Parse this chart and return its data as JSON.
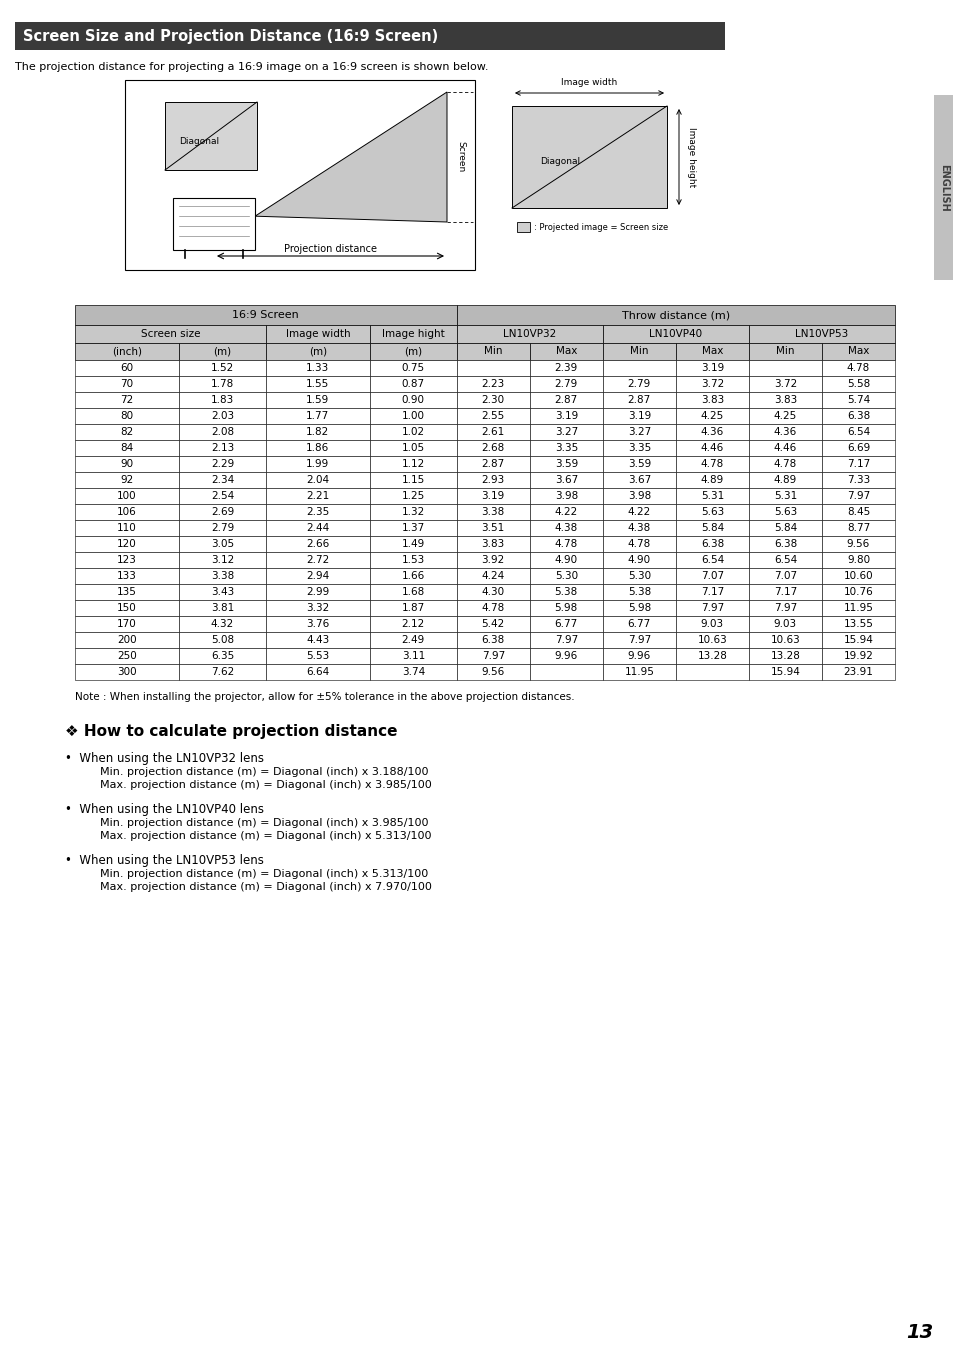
{
  "title": "Screen Size and Projection Distance (16:9 Screen)",
  "title_bg": "#3a3a3a",
  "title_color": "#ffffff",
  "intro_text": "The projection distance for projecting a 16:9 image on a 16:9 screen is shown below.",
  "table_header3_cols": [
    "(inch)",
    "(m)",
    "(m)",
    "(m)",
    "Min",
    "Max",
    "Min",
    "Max",
    "Min",
    "Max"
  ],
  "table_data": [
    [
      "60",
      "1.52",
      "1.33",
      "0.75",
      "",
      "2.39",
      "",
      "3.19",
      "",
      "4.78"
    ],
    [
      "70",
      "1.78",
      "1.55",
      "0.87",
      "2.23",
      "2.79",
      "2.79",
      "3.72",
      "3.72",
      "5.58"
    ],
    [
      "72",
      "1.83",
      "1.59",
      "0.90",
      "2.30",
      "2.87",
      "2.87",
      "3.83",
      "3.83",
      "5.74"
    ],
    [
      "80",
      "2.03",
      "1.77",
      "1.00",
      "2.55",
      "3.19",
      "3.19",
      "4.25",
      "4.25",
      "6.38"
    ],
    [
      "82",
      "2.08",
      "1.82",
      "1.02",
      "2.61",
      "3.27",
      "3.27",
      "4.36",
      "4.36",
      "6.54"
    ],
    [
      "84",
      "2.13",
      "1.86",
      "1.05",
      "2.68",
      "3.35",
      "3.35",
      "4.46",
      "4.46",
      "6.69"
    ],
    [
      "90",
      "2.29",
      "1.99",
      "1.12",
      "2.87",
      "3.59",
      "3.59",
      "4.78",
      "4.78",
      "7.17"
    ],
    [
      "92",
      "2.34",
      "2.04",
      "1.15",
      "2.93",
      "3.67",
      "3.67",
      "4.89",
      "4.89",
      "7.33"
    ],
    [
      "100",
      "2.54",
      "2.21",
      "1.25",
      "3.19",
      "3.98",
      "3.98",
      "5.31",
      "5.31",
      "7.97"
    ],
    [
      "106",
      "2.69",
      "2.35",
      "1.32",
      "3.38",
      "4.22",
      "4.22",
      "5.63",
      "5.63",
      "8.45"
    ],
    [
      "110",
      "2.79",
      "2.44",
      "1.37",
      "3.51",
      "4.38",
      "4.38",
      "5.84",
      "5.84",
      "8.77"
    ],
    [
      "120",
      "3.05",
      "2.66",
      "1.49",
      "3.83",
      "4.78",
      "4.78",
      "6.38",
      "6.38",
      "9.56"
    ],
    [
      "123",
      "3.12",
      "2.72",
      "1.53",
      "3.92",
      "4.90",
      "4.90",
      "6.54",
      "6.54",
      "9.80"
    ],
    [
      "133",
      "3.38",
      "2.94",
      "1.66",
      "4.24",
      "5.30",
      "5.30",
      "7.07",
      "7.07",
      "10.60"
    ],
    [
      "135",
      "3.43",
      "2.99",
      "1.68",
      "4.30",
      "5.38",
      "5.38",
      "7.17",
      "7.17",
      "10.76"
    ],
    [
      "150",
      "3.81",
      "3.32",
      "1.87",
      "4.78",
      "5.98",
      "5.98",
      "7.97",
      "7.97",
      "11.95"
    ],
    [
      "170",
      "4.32",
      "3.76",
      "2.12",
      "5.42",
      "6.77",
      "6.77",
      "9.03",
      "9.03",
      "13.55"
    ],
    [
      "200",
      "5.08",
      "4.43",
      "2.49",
      "6.38",
      "7.97",
      "7.97",
      "10.63",
      "10.63",
      "15.94"
    ],
    [
      "250",
      "6.35",
      "5.53",
      "3.11",
      "7.97",
      "9.96",
      "9.96",
      "13.28",
      "13.28",
      "19.92"
    ],
    [
      "300",
      "7.62",
      "6.64",
      "3.74",
      "9.56",
      "",
      "11.95",
      "",
      "15.94",
      "23.91"
    ]
  ],
  "note_text": "Note : When installing the projector, allow for ±5% tolerance in the above projection distances.",
  "section_title": "❖ How to calculate projection distance",
  "bullets": [
    {
      "header": "When using the LN10VP32 lens",
      "lines": [
        "Min. projection distance (m) = Diagonal (inch) x 3.188/100",
        "Max. projection distance (m) = Diagonal (inch) x 3.985/100"
      ]
    },
    {
      "header": "When using the LN10VP40 lens",
      "lines": [
        "Min. projection distance (m) = Diagonal (inch) x 3.985/100",
        "Max. projection distance (m) = Diagonal (inch) x 5.313/100"
      ]
    },
    {
      "header": "When using the LN10VP53 lens",
      "lines": [
        "Min. projection distance (m) = Diagonal (inch) x 5.313/100",
        "Max. projection distance (m) = Diagonal (inch) x 7.970/100"
      ]
    }
  ],
  "page_number": "13",
  "bg_color": "#ffffff"
}
